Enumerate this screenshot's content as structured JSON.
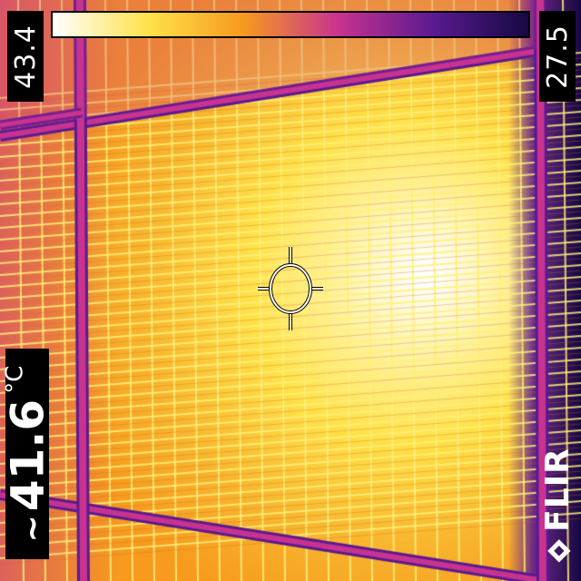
{
  "camera": {
    "brand_label": "FLIR",
    "spot_temperature": "41.6",
    "temperature_unit": "°C",
    "scale_max": "43.4",
    "scale_min": "27.5"
  },
  "palette": {
    "hot": "#ffffff",
    "warm_yellow": "#ffe24a",
    "orange": "#f79a1e",
    "magenta": "#c8338f",
    "purple": "#5a1a90",
    "cold": "#160842"
  },
  "icons": {
    "brand": "flir-diamond-logo",
    "spot_meter": "crosshair-reticle"
  }
}
